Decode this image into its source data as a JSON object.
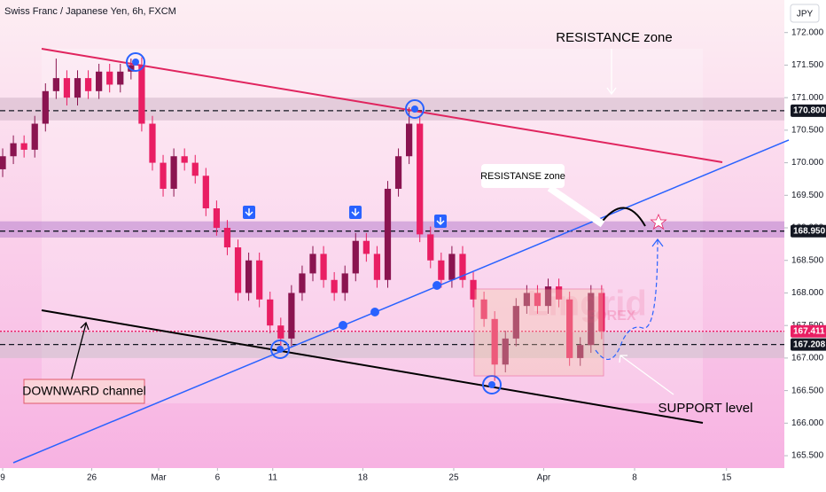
{
  "chart_data": {
    "type": "candlestick",
    "title": "Swiss Franc / Japanese Yen, 6h, FXCM",
    "currency": "JPY",
    "up_color": "#8a1450",
    "down_color": "#e91e63",
    "open": [
      169.9,
      170.1,
      170.3,
      170.2,
      170.6,
      171.1,
      171.3,
      171.0,
      171.3,
      171.1,
      171.4,
      171.2,
      171.4,
      171.5,
      170.6,
      170.0,
      169.6,
      170.1,
      170.0,
      169.8,
      169.3,
      169.0,
      168.7,
      168.0,
      168.5,
      167.9,
      167.5,
      167.3,
      168.0,
      168.3,
      168.6,
      168.2,
      168.0,
      168.3,
      168.8,
      168.6,
      168.2,
      169.6,
      170.1,
      170.6,
      168.9,
      168.5,
      168.2,
      168.6,
      168.2,
      167.9,
      167.6,
      166.9,
      167.3,
      167.8,
      168.0,
      167.8,
      168.1,
      167.9,
      167.0,
      167.2,
      168.0
    ],
    "high": [
      170.22,
      170.42,
      170.42,
      170.72,
      171.22,
      171.6,
      171.42,
      171.42,
      171.42,
      171.52,
      171.52,
      171.52,
      171.6,
      171.62,
      170.72,
      170.12,
      170.22,
      170.22,
      170.12,
      169.92,
      169.42,
      169.12,
      168.82,
      168.62,
      168.62,
      168.02,
      167.62,
      168.12,
      168.42,
      168.72,
      168.72,
      168.32,
      168.42,
      168.92,
      168.92,
      168.72,
      169.72,
      170.22,
      170.85,
      170.72,
      169.02,
      168.62,
      168.72,
      168.72,
      168.32,
      168.02,
      167.72,
      167.42,
      167.92,
      168.12,
      168.12,
      168.22,
      168.22,
      168.02,
      167.32,
      168.12,
      168.12
    ],
    "low": [
      169.78,
      169.98,
      170.08,
      170.08,
      170.48,
      170.98,
      170.88,
      170.88,
      170.98,
      170.98,
      171.08,
      171.08,
      171.28,
      170.48,
      169.88,
      169.48,
      169.48,
      169.88,
      169.68,
      169.18,
      168.88,
      168.58,
      167.88,
      167.88,
      167.78,
      167.38,
      167.1,
      167.18,
      167.88,
      168.18,
      168.08,
      167.88,
      167.88,
      168.18,
      168.48,
      168.08,
      168.08,
      169.48,
      169.98,
      168.78,
      168.38,
      168.08,
      168.08,
      168.08,
      167.78,
      167.48,
      166.65,
      166.78,
      167.18,
      167.68,
      167.68,
      167.68,
      167.78,
      166.88,
      166.88,
      167.08,
      167.29
    ],
    "close": [
      170.1,
      170.3,
      170.2,
      170.6,
      171.1,
      171.3,
      171.0,
      171.3,
      171.1,
      171.4,
      171.2,
      171.4,
      171.5,
      170.6,
      170.0,
      169.6,
      170.1,
      170.0,
      169.8,
      169.3,
      169.0,
      168.7,
      168.0,
      168.5,
      167.9,
      167.5,
      167.3,
      168.0,
      168.3,
      168.6,
      168.2,
      168.0,
      168.3,
      168.8,
      168.6,
      168.2,
      169.6,
      170.1,
      170.6,
      168.9,
      168.5,
      168.2,
      168.6,
      168.2,
      167.9,
      167.6,
      166.9,
      167.3,
      167.8,
      168.0,
      167.8,
      168.1,
      167.9,
      167.0,
      167.2,
      168.0,
      167.41
    ],
    "xlim": [
      -0.25,
      73.08
    ],
    "xticks": [
      {
        "value": 0,
        "label": "9"
      },
      {
        "value": 8.33,
        "label": "26"
      },
      {
        "value": 14.58,
        "label": "Mar"
      },
      {
        "value": 20.08,
        "label": "6"
      },
      {
        "value": 25.25,
        "label": "11"
      },
      {
        "value": 33.67,
        "label": "18"
      },
      {
        "value": 42.17,
        "label": "25"
      },
      {
        "value": 50.58,
        "label": "Apr"
      },
      {
        "value": 59.08,
        "label": "8"
      },
      {
        "value": 67.67,
        "label": "15"
      }
    ],
    "ylim": [
      165.31,
      172.5
    ],
    "yticks": [
      {
        "value": 165.5,
        "label": "165.500"
      },
      {
        "value": 166,
        "label": "166.000"
      },
      {
        "value": 166.5,
        "label": "166.500"
      },
      {
        "value": 167,
        "label": "167.000"
      },
      {
        "value": 167.5,
        "label": "167.500"
      },
      {
        "value": 168,
        "label": "168.000"
      },
      {
        "value": 168.5,
        "label": "168.500"
      },
      {
        "value": 169,
        "label": "169.000"
      },
      {
        "value": 169.5,
        "label": "169.500"
      },
      {
        "value": 170,
        "label": "170.000"
      },
      {
        "value": 170.5,
        "label": "170.500"
      },
      {
        "value": 171,
        "label": "171.000"
      },
      {
        "value": 171.5,
        "label": "171.500"
      },
      {
        "value": 172,
        "label": "172.000"
      }
    ],
    "zones": [
      [
        170.65,
        171.0
      ],
      [
        168.85,
        169.1
      ],
      [
        167.0,
        167.4
      ]
    ],
    "zone_colors": [
      "rgba(200,170,190,0.45)",
      "rgba(170,110,200,0.45)",
      "rgba(200,190,200,0.5)"
    ],
    "levels": [
      {
        "value": 170.8,
        "label": "170.800"
      },
      {
        "value": 168.95,
        "label": "168.950"
      },
      {
        "value": 167.411,
        "label": "167.411"
      },
      {
        "value": 167.208,
        "label": "167.208"
      }
    ],
    "level_colors": [
      "#131722",
      "#131722",
      "#e91e63",
      "#131722"
    ],
    "annotations": [
      "RESISTANCE zone",
      "RESISTANSE zone",
      "DOWNWARD channel",
      "SUPPORT level"
    ],
    "watermark": [
      "Lingrid",
      "FOREX"
    ]
  }
}
